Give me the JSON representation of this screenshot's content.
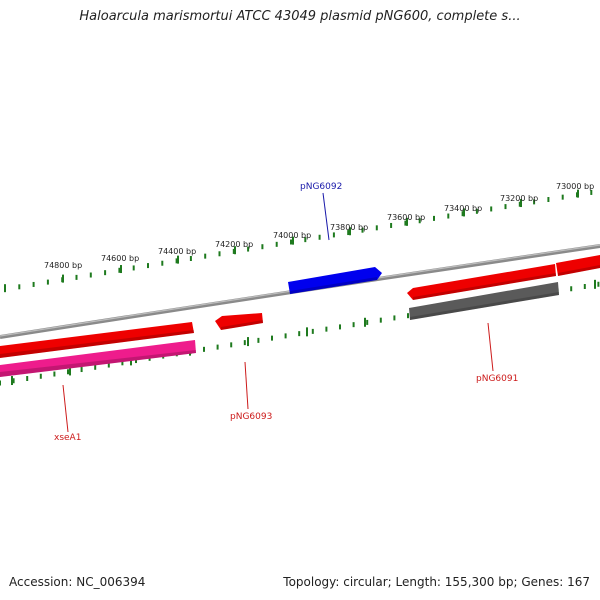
{
  "title": "Haloarcula marismortui ATCC 43049 plasmid pNG600, complete s...",
  "footer": {
    "accession": "Accession: NC_006394",
    "summary": "Topology: circular; Length: 155,300 bp; Genes: 167"
  },
  "map": {
    "backbone_color": "#8a8a8a",
    "tick_color": "#1e7a1e",
    "outer_scale_labels": [
      "74800 bp",
      "74600 bp",
      "74400 bp",
      "74200 bp",
      "74000 bp",
      "73800 bp",
      "73600 bp",
      "73400 bp",
      "73200 bp",
      "73000 bp"
    ],
    "features": [
      {
        "name": "",
        "strand": "forward",
        "color": "#ee0000"
      },
      {
        "name": "",
        "strand": "forward",
        "color": "#ee0000"
      },
      {
        "name": "pNG6093",
        "strand": "forward",
        "color": "#ee0000"
      },
      {
        "name": "",
        "strand": "forward",
        "color": "#ee0000"
      },
      {
        "name": "pNG6092",
        "strand": "reverse",
        "color": "#0000ee"
      },
      {
        "name": "xseA1",
        "strand": "forward",
        "color": "#ee1c8c"
      },
      {
        "name": "pNG6091",
        "strand": "forward",
        "color": "#5a5a5a"
      }
    ]
  }
}
